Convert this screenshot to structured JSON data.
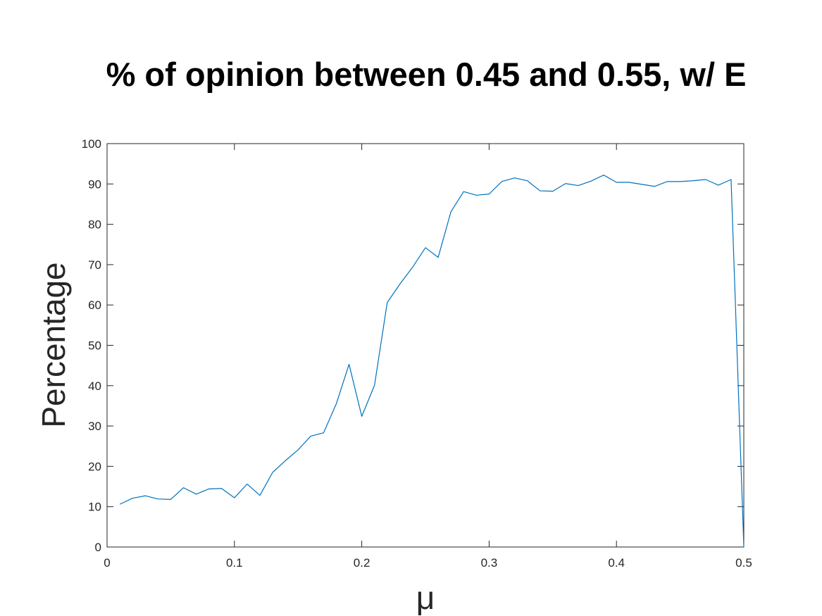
{
  "chart_data": {
    "type": "line",
    "title": "% of opinion between 0.45 and 0.55, w/ E",
    "xlabel": "μ",
    "ylabel": "Percentage",
    "xlim": [
      0,
      0.5
    ],
    "ylim": [
      0,
      100
    ],
    "xticks": [
      0,
      0.1,
      0.2,
      0.3,
      0.4,
      0.5
    ],
    "xtick_labels": [
      "0",
      "0.1",
      "0.2",
      "0.3",
      "0.4",
      "0.5"
    ],
    "yticks": [
      0,
      10,
      20,
      30,
      40,
      50,
      60,
      70,
      80,
      90,
      100
    ],
    "ytick_labels": [
      "0",
      "10",
      "20",
      "30",
      "40",
      "50",
      "60",
      "70",
      "80",
      "90",
      "100"
    ],
    "grid": false,
    "box": true,
    "series": [
      {
        "color": "#0072BD",
        "x": [
          0.01,
          0.02,
          0.03,
          0.04,
          0.05,
          0.06,
          0.07,
          0.08,
          0.09,
          0.1,
          0.11,
          0.12,
          0.13,
          0.14,
          0.15,
          0.16,
          0.17,
          0.18,
          0.19,
          0.2,
          0.21,
          0.22,
          0.23,
          0.24,
          0.25,
          0.26,
          0.27,
          0.28,
          0.29,
          0.3,
          0.31,
          0.32,
          0.33,
          0.34,
          0.35,
          0.36,
          0.37,
          0.38,
          0.39,
          0.4,
          0.41,
          0.42,
          0.43,
          0.44,
          0.45,
          0.46,
          0.47,
          0.48,
          0.49,
          0.5
        ],
        "y": [
          10.6,
          12.1,
          12.7,
          11.9,
          11.8,
          14.7,
          13.1,
          14.4,
          14.5,
          12.2,
          15.6,
          12.8,
          18.5,
          21.4,
          24.1,
          27.5,
          28.3,
          35.5,
          45.3,
          32.4,
          40.1,
          60.6,
          65.2,
          69.4,
          74.2,
          71.8,
          83.1,
          88.1,
          87.2,
          87.5,
          90.6,
          91.5,
          90.8,
          88.3,
          88.2,
          90.1,
          89.6,
          90.7,
          92.2,
          90.4,
          90.4,
          89.9,
          89.4,
          90.6,
          90.6,
          90.8,
          91.1,
          89.7,
          91.1,
          0.0
        ]
      }
    ]
  }
}
